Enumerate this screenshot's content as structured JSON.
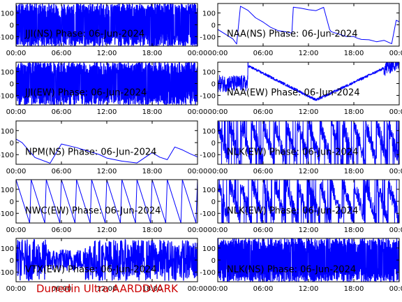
{
  "footer": "Dunedin Ultra AARDDVARK",
  "colors": {
    "trace": "#0000ff",
    "axes": "#000000",
    "footer": "#cc0000"
  },
  "chart_data": [
    {
      "type": "line",
      "title": "JJI(NS) Phase: 06-Jun-2024",
      "title_parts": [
        "JJI(NS) ",
        "Phase: 06-Jun-2024"
      ],
      "xlabel": "",
      "ylabel": "",
      "xticks": [
        "00:00",
        "06:00",
        "12:00",
        "18:00",
        "00:00"
      ],
      "yticks": [
        100,
        0,
        -100
      ],
      "ylim": [
        -180,
        180
      ],
      "pattern": "dense",
      "series": [
        {
          "x": [
            0,
            24
          ],
          "y": [
            -180,
            180
          ]
        }
      ]
    },
    {
      "type": "line",
      "title": "NAA(NS) Phase: 06-Jun-2024",
      "title_parts": [
        "NAA(NS) ",
        "Phase: 06-Jun-2024"
      ],
      "xlabel": "",
      "ylabel": "",
      "xticks": [
        "00:00",
        "06:00",
        "12:00",
        "18:00",
        "00:00"
      ],
      "yticks": [
        100,
        0,
        -100
      ],
      "ylim": [
        -180,
        180
      ],
      "pattern": "naa_ns",
      "series": [
        {
          "x": [
            0,
            1,
            2,
            2.5,
            3,
            4,
            5,
            6,
            7,
            8,
            9,
            9.8,
            10,
            11,
            12,
            13,
            14,
            14.8,
            15,
            16,
            17,
            18,
            18.5,
            19,
            20,
            21,
            22,
            23,
            23.6,
            24
          ],
          "y": [
            -40,
            -80,
            -120,
            -160,
            160,
            120,
            60,
            20,
            -20,
            -50,
            -60,
            -70,
            150,
            140,
            130,
            120,
            150,
            -40,
            -60,
            -80,
            -100,
            -100,
            -110,
            -120,
            -130,
            -140,
            -130,
            -160,
            40,
            30
          ]
        }
      ]
    },
    {
      "type": "line",
      "title": "JJI(EW) Phase: 06-Jun-2024",
      "title_parts": [
        "JJI(EW) ",
        "Phase: 06-Jun-2024"
      ],
      "xlabel": "",
      "ylabel": "",
      "xticks": [
        "00:00",
        "06:00",
        "12:00",
        "18:00",
        "00:00"
      ],
      "yticks": [
        100,
        0,
        -100
      ],
      "ylim": [
        -180,
        180
      ],
      "pattern": "dense",
      "series": [
        {
          "x": [
            0,
            24
          ],
          "y": [
            -180,
            180
          ]
        }
      ]
    },
    {
      "type": "line",
      "title": "NAA(EW) Phase: 06-Jun-2024",
      "title_parts": [
        "NAA(EW) ",
        "Phase: 06-Jun-2024"
      ],
      "xlabel": "",
      "ylabel": "",
      "xticks": [
        "00:00",
        "06:00",
        "12:00",
        "18:00",
        "00:00"
      ],
      "yticks": [
        100,
        0,
        -100
      ],
      "ylim": [
        -180,
        180
      ],
      "pattern": "naa_ew",
      "series": [
        {
          "x": [
            0,
            2,
            4,
            6,
            8,
            10,
            12,
            14,
            16,
            18,
            20,
            22,
            24
          ],
          "y": [
            0,
            20,
            120,
            80,
            0,
            -80,
            -140,
            -80,
            0,
            80,
            150,
            60,
            0
          ]
        }
      ]
    },
    {
      "type": "line",
      "title": "NPM(NS) Phase: 06-Jun-2024",
      "title_parts": [
        "NPM(NS) ",
        "Phase: 06-Jun-2024"
      ],
      "xlabel": "",
      "ylabel": "",
      "xticks": [
        "00:00",
        "06:00",
        "12:00",
        "18:00",
        "00:00"
      ],
      "yticks": [
        100,
        0,
        -100
      ],
      "ylim": [
        -180,
        180
      ],
      "pattern": "npm_ns",
      "series": [
        {
          "x": [
            0,
            0.8,
            2.5,
            4.5,
            6,
            8,
            10,
            11,
            12,
            14,
            16,
            18,
            19,
            20,
            21,
            22,
            23,
            24
          ],
          "y": [
            30,
            0,
            -120,
            -170,
            -10,
            -40,
            -80,
            -100,
            -130,
            -150,
            -170,
            -80,
            -120,
            -140,
            -40,
            -60,
            -90,
            -120
          ]
        }
      ]
    },
    {
      "type": "line",
      "title": "NLK(EW) Phase: 06-Jun-2024",
      "title_parts": [
        "NLK(EW) ",
        "Phase: 06-Jun-2024"
      ],
      "xlabel": "",
      "ylabel": "",
      "xticks": [
        "00:00",
        "06:00",
        "12:00",
        "18:00",
        "00:00"
      ],
      "yticks": [
        100,
        0,
        -100
      ],
      "ylim": [
        -180,
        180
      ],
      "pattern": "sawtooth_dense",
      "series": [
        {
          "x": [
            0,
            1.5,
            3,
            4.5,
            6,
            7.5,
            9,
            10.5,
            12,
            13.5,
            15,
            16.5,
            18,
            19.5,
            21,
            22.5,
            24
          ],
          "y": [
            160,
            -160,
            160,
            -160,
            160,
            -160,
            160,
            -160,
            160,
            -160,
            160,
            -160,
            160,
            -160,
            160,
            -160,
            160
          ]
        }
      ]
    },
    {
      "type": "line",
      "title": "NWC(EW) Phase: 06-Jun-2024",
      "title_parts": [
        "NWC(EW) ",
        "Phase: 06-Jun-2024"
      ],
      "xlabel": "",
      "ylabel": "",
      "xticks": [
        "00:00",
        "06:00",
        "12:00",
        "18:00",
        "00:00"
      ],
      "yticks": [
        100,
        0,
        -100
      ],
      "ylim": [
        -180,
        180
      ],
      "pattern": "nwc_ew",
      "series": [
        {
          "x": [
            0,
            1.8,
            2,
            3.8,
            4,
            5.8,
            6,
            7.8,
            8,
            9.8,
            10,
            11.8,
            12,
            13.8,
            14,
            15.8,
            16,
            17.8,
            18,
            19.8,
            20,
            21.8,
            22,
            23.8,
            24
          ],
          "y": [
            180,
            -180,
            180,
            -180,
            180,
            -180,
            180,
            -180,
            180,
            -180,
            180,
            -180,
            180,
            -180,
            180,
            -180,
            180,
            -180,
            180,
            -180,
            180,
            -180,
            180,
            -180,
            180
          ]
        }
      ]
    },
    {
      "type": "line",
      "title": "NLK(EW) Phase: 06-Jun-2024",
      "title_parts": [
        "NLK(EW) ",
        "Phase: 06-Jun-2024"
      ],
      "xlabel": "",
      "ylabel": "",
      "xticks": [
        "00:00",
        "06:00",
        "12:00",
        "18:00",
        "00:00"
      ],
      "yticks": [
        100,
        0,
        -100
      ],
      "ylim": [
        -180,
        180
      ],
      "pattern": "sawtooth_dense",
      "series": [
        {
          "x": [
            0,
            1.5,
            3,
            4.5,
            6,
            7.5,
            9,
            10.5,
            12,
            13.5,
            15,
            16.5,
            18,
            19.5,
            21,
            22.5,
            24
          ],
          "y": [
            160,
            -160,
            160,
            -160,
            160,
            -160,
            160,
            -160,
            160,
            -160,
            160,
            -160,
            160,
            -160,
            160,
            -160,
            160
          ]
        }
      ]
    },
    {
      "type": "line",
      "title": "VTX(EW) Phase: 06-Jun-2024",
      "title_parts": [
        "VTX(EW) ",
        "Phase: 06-Jun-2024"
      ],
      "xlabel": "",
      "ylabel": "",
      "xticks": [
        "00:00",
        "06:00",
        "12:00",
        "18:00",
        "00:00"
      ],
      "yticks": [
        100,
        0,
        -100
      ],
      "ylim": [
        -180,
        180
      ],
      "pattern": "vtx_ew",
      "series": [
        {
          "x": [
            0,
            24
          ],
          "y": [
            -180,
            180
          ]
        }
      ]
    },
    {
      "type": "line",
      "title": "NLK(NS) Phase: 06-Jun-2024",
      "title_parts": [
        "NLK(NS) ",
        "Phase: 06-Jun-2024"
      ],
      "xlabel": "",
      "ylabel": "",
      "xticks": [
        "00:00",
        "06:00",
        "12:00",
        "18:00",
        "00:00"
      ],
      "yticks": [
        100,
        0,
        -100
      ],
      "ylim": [
        -180,
        180
      ],
      "pattern": "dense",
      "series": [
        {
          "x": [
            0,
            24
          ],
          "y": [
            -180,
            180
          ]
        }
      ]
    }
  ]
}
